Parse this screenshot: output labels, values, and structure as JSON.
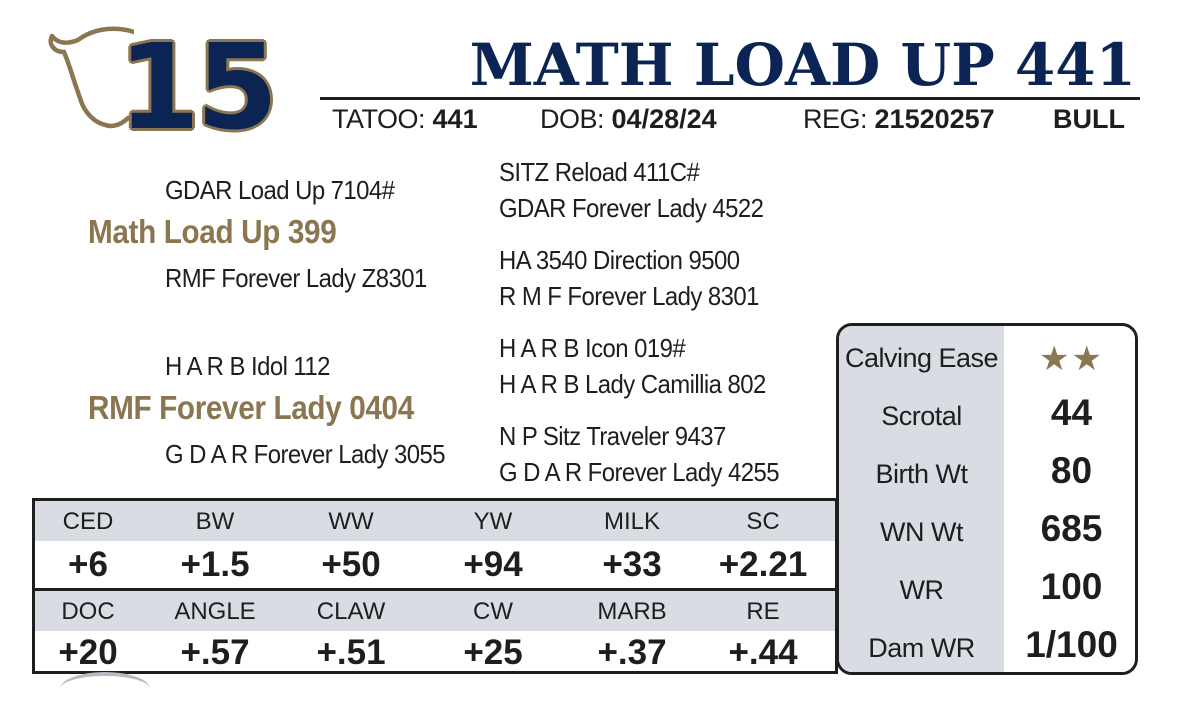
{
  "header": {
    "lot_number": "15",
    "animal_name": "MATH LOAD UP 441",
    "tattoo_label": "TATOO:",
    "tattoo_value": "441",
    "dob_label": "DOB:",
    "dob_value": "04/28/24",
    "reg_label": "REG:",
    "reg_value": "21520257",
    "sex": "BULL",
    "logo_icon": "cow-head-icon"
  },
  "pedigree": {
    "sire": "Math Load Up 399",
    "sire_sire": "GDAR Load Up 7104#",
    "sire_dam": "RMF Forever Lady Z8301",
    "sire_sire_sire": "SITZ Reload 411C#",
    "sire_sire_dam": "GDAR Forever Lady 4522",
    "sire_dam_sire": "HA 3540 Direction 9500",
    "sire_dam_dam": "R M F Forever Lady 8301",
    "dam": "RMF Forever Lady 0404",
    "dam_sire": "H A R B Idol 112",
    "dam_dam": "G D A R Forever Lady 3055",
    "dam_sire_sire": "H A R B Icon 019#",
    "dam_sire_dam": "H A R B Lady Camillia 802",
    "dam_dam_sire": "N P Sitz Traveler 9437",
    "dam_dam_dam": "G D A R Forever Lady 4255"
  },
  "performance": {
    "calving_ease_label": "Calving Ease",
    "calving_ease_stars": "★★",
    "calving_ease_rating": 2,
    "scrotal_label": "Scrotal",
    "scrotal_value": "44",
    "birth_wt_label": "Birth Wt",
    "birth_wt_value": "80",
    "wn_wt_label": "WN Wt",
    "wn_wt_value": "685",
    "wr_label": "WR",
    "wr_value": "100",
    "dam_wr_label": "Dam WR",
    "dam_wr_value": "1/100"
  },
  "epd": {
    "row1_headers": [
      "CED",
      "BW",
      "WW",
      "YW",
      "MILK",
      "SC"
    ],
    "row1_values": [
      "+6",
      "+1.5",
      "+50",
      "+94",
      "+33",
      "+2.21"
    ],
    "row2_headers": [
      "DOC",
      "ANGLE",
      "CLAW",
      "CW",
      "MARB",
      "RE"
    ],
    "row2_values": [
      "+20",
      "+.57",
      "+.51",
      "+25",
      "+.37",
      "+.44"
    ]
  },
  "colors": {
    "navy": "#0b2453",
    "gold": "#8a7650",
    "gray_fill": "#d9dde3",
    "text": "#1e1e1e"
  }
}
